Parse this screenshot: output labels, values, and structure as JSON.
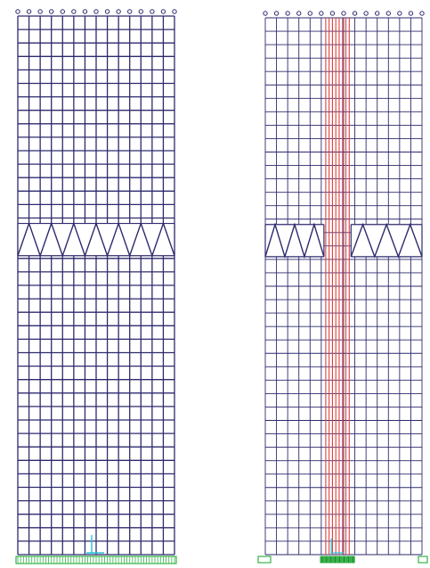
{
  "colors": {
    "frame": "#2e2a6e",
    "core": "#e0413f",
    "support": "#37b24a",
    "axis": "#2bc2d8",
    "background": "#ffffff"
  },
  "panels": [
    {
      "name": "model-a",
      "columns": 14,
      "stories": 40,
      "truss_story_above": 16,
      "truss_peaks": 7,
      "core": false,
      "support_type": "continuous-foundation"
    },
    {
      "name": "model-b",
      "columns": 14,
      "stories": 40,
      "truss_story_above": 16,
      "truss_peaks_left": 3,
      "truss_peaks_right": 3,
      "core": true,
      "core_lines": 8,
      "support_type": "discrete-pads"
    }
  ]
}
